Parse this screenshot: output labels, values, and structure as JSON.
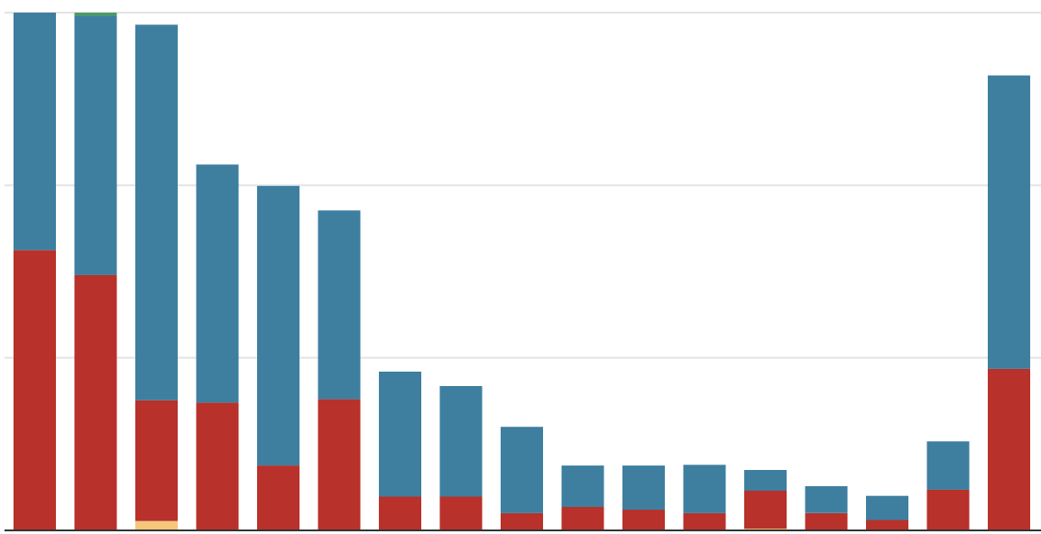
{
  "chart_data": {
    "type": "bar",
    "stacked": true,
    "categories": [
      "",
      "",
      "",
      "",
      "",
      "",
      "",
      "",
      "",
      "",
      "",
      "",
      "",
      "",
      "",
      "",
      ""
    ],
    "ylim": [
      0,
      150
    ],
    "gridlines": [
      50,
      100,
      150
    ],
    "grid": true,
    "legend": false,
    "series": [
      {
        "color": "#f6c77a",
        "values": [
          0,
          0,
          2.7,
          0,
          0,
          0,
          0,
          0,
          0,
          0,
          0,
          0,
          0.5,
          0,
          0,
          0,
          0
        ]
      },
      {
        "color": "#b8312a",
        "values": [
          81.2,
          74.0,
          35.0,
          37.0,
          18.8,
          38.0,
          9.8,
          9.8,
          5.0,
          6.8,
          6.0,
          5.0,
          11.0,
          5.0,
          3.0,
          11.8,
          46.8
        ]
      },
      {
        "color": "#3e7fa0",
        "values": [
          68.8,
          75.2,
          108.8,
          69.0,
          81.0,
          54.7,
          36.2,
          32.0,
          25.0,
          12.0,
          12.8,
          14.0,
          6.0,
          7.8,
          7.0,
          14.0,
          85.0
        ]
      },
      {
        "color": "#4a9e5c",
        "values": [
          0,
          0.8,
          0,
          0,
          0,
          0,
          0,
          0,
          0,
          0,
          0,
          0,
          0,
          0,
          0,
          0,
          0
        ]
      }
    ]
  }
}
